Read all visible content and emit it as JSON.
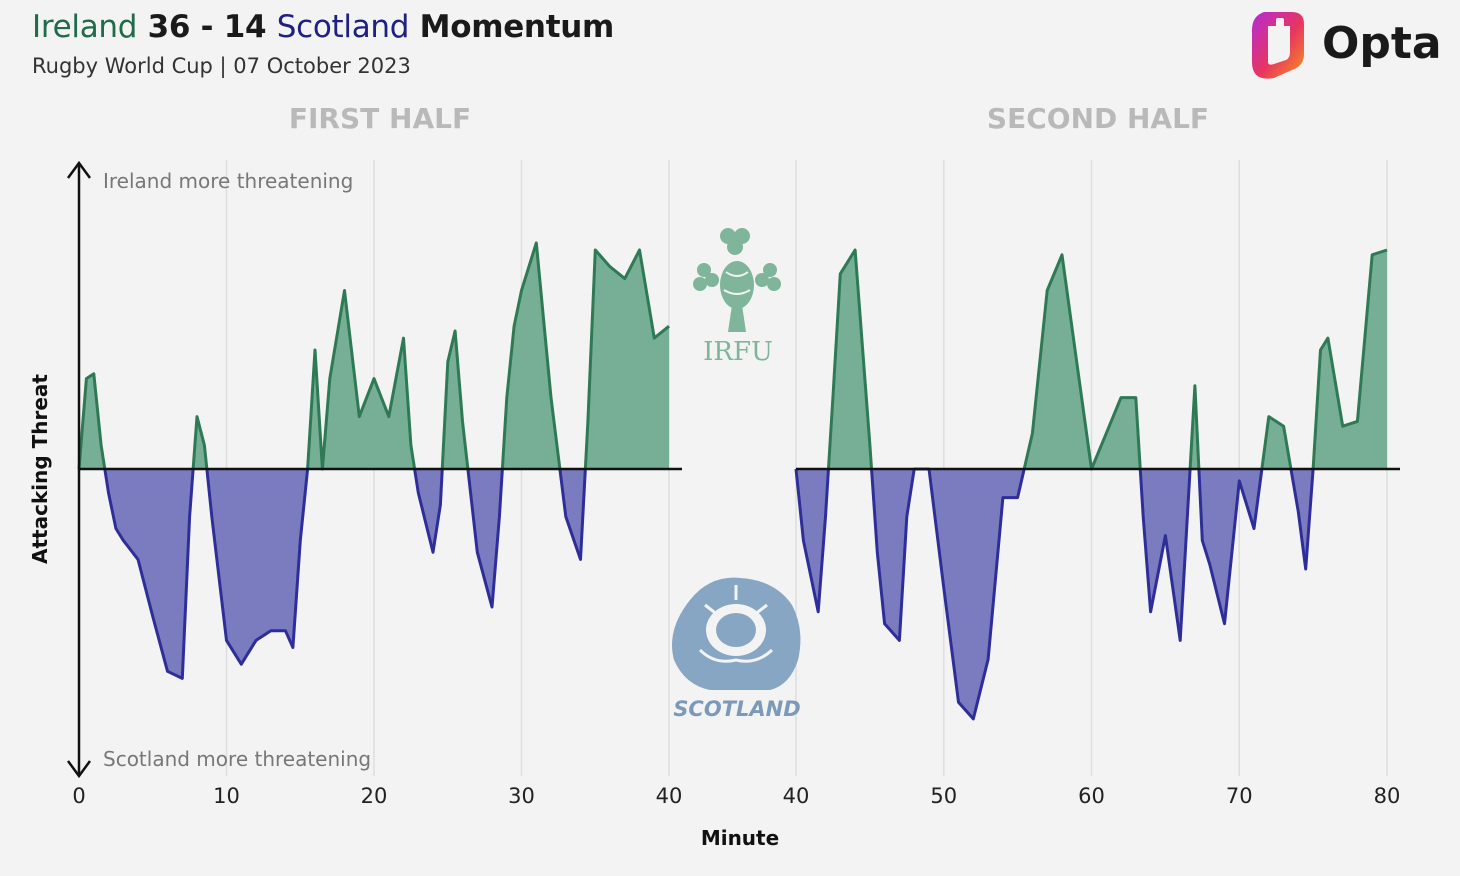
{
  "header": {
    "title_team1": "Ireland",
    "title_score": "36 - 14",
    "title_team2": "Scotland",
    "title_suffix": "Momentum",
    "subtitle": "Rugby World Cup | 07 October 2023",
    "brand": "Opta"
  },
  "crests": {
    "ireland_text": "IRFU",
    "scotland_text": "SCOTLAND"
  },
  "colors": {
    "ireland": "#77ae96",
    "ireland_line": "#2e7a55",
    "scotland": "#7b7bc0",
    "scotland_line": "#2e2e98"
  },
  "chart_data": {
    "type": "area",
    "ylabel": "Attacking Threat",
    "xlabel": "Minute",
    "y_top_label": "Ireland more threatening",
    "y_bottom_label": "Scotland more threatening",
    "ylim": [
      -1,
      1
    ],
    "grid": true,
    "panels": [
      {
        "title": "FIRST HALF",
        "xlim": [
          0,
          40
        ],
        "xticks": [
          "0",
          "10",
          "20",
          "30",
          "40"
        ],
        "x": [
          0,
          0.5,
          1,
          1.5,
          2,
          2.5,
          3,
          4,
          5,
          6,
          7,
          7.5,
          8,
          8.5,
          9,
          10,
          11,
          12,
          13,
          14,
          14.5,
          15,
          15.5,
          16,
          16.5,
          17,
          18,
          19,
          20,
          21,
          22,
          22.5,
          23,
          24,
          24.5,
          25,
          25.5,
          26,
          27,
          28,
          28.5,
          29,
          29.5,
          30,
          31,
          32,
          33,
          34,
          34.5,
          35,
          36,
          37,
          38,
          39,
          40
        ],
        "values": [
          0,
          0.38,
          0.4,
          0.1,
          -0.1,
          -0.25,
          -0.3,
          -0.38,
          -0.62,
          -0.85,
          -0.88,
          -0.2,
          0.22,
          0.1,
          -0.2,
          -0.72,
          -0.82,
          -0.72,
          -0.68,
          -0.68,
          -0.75,
          -0.3,
          0,
          0.5,
          0,
          0.38,
          0.75,
          0.22,
          0.38,
          0.22,
          0.55,
          0.1,
          -0.1,
          -0.35,
          -0.15,
          0.45,
          0.58,
          0.2,
          -0.35,
          -0.58,
          -0.2,
          0.3,
          0.6,
          0.75,
          0.95,
          0.3,
          -0.2,
          -0.38,
          0.2,
          0.92,
          0.85,
          0.8,
          0.92,
          0.55,
          0.6
        ]
      },
      {
        "title": "SECOND HALF",
        "xlim": [
          40,
          80
        ],
        "xticks": [
          "40",
          "50",
          "60",
          "70",
          "80"
        ],
        "x": [
          40,
          40.5,
          41,
          41.5,
          42,
          42.5,
          43,
          44,
          45,
          45.5,
          46,
          47,
          47.5,
          48,
          49,
          50,
          51,
          52,
          53,
          54,
          55,
          56,
          57,
          58,
          59,
          60,
          61,
          62,
          63,
          63.5,
          64,
          65,
          66,
          67,
          67.5,
          68,
          69,
          70,
          71,
          72,
          73,
          74,
          74.5,
          75,
          75.5,
          76,
          77,
          78,
          79,
          80
        ],
        "values": [
          0,
          -0.3,
          -0.45,
          -0.6,
          -0.2,
          0.3,
          0.82,
          0.92,
          0.1,
          -0.35,
          -0.65,
          -0.72,
          -0.2,
          0,
          0,
          -0.5,
          -0.98,
          -1.05,
          -0.8,
          -0.12,
          -0.12,
          0.15,
          0.75,
          0.9,
          0.45,
          0,
          0.15,
          0.3,
          0.3,
          -0.2,
          -0.6,
          -0.28,
          -0.72,
          0.35,
          -0.3,
          -0.4,
          -0.65,
          -0.05,
          -0.25,
          0.22,
          0.18,
          -0.18,
          -0.42,
          0,
          0.5,
          0.55,
          0.18,
          0.2,
          0.9,
          0.92
        ]
      }
    ]
  }
}
